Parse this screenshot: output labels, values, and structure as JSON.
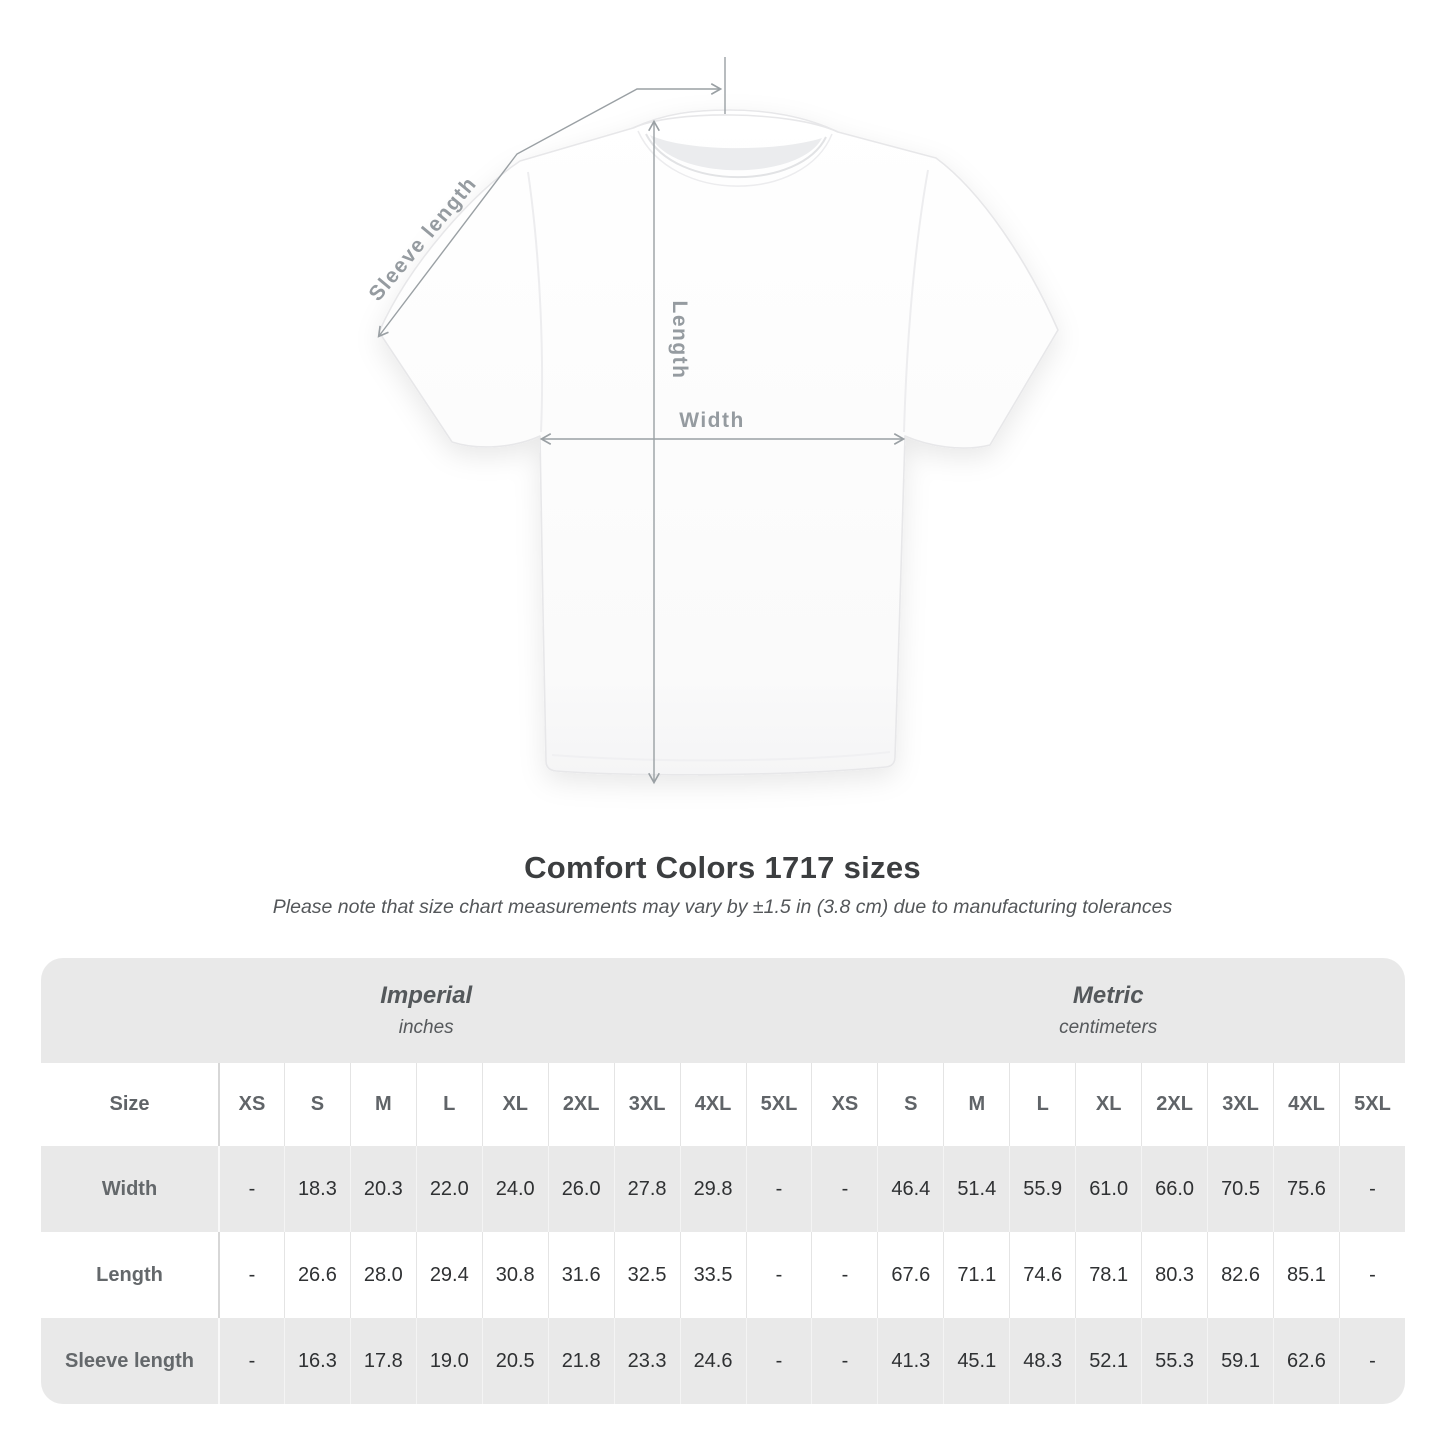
{
  "diagram": {
    "sleeve_label": "Sleeve length",
    "length_label": "Length",
    "width_label": "Width"
  },
  "header": {
    "title": "Comfort Colors 1717 sizes",
    "subtitle": "Please note that size chart measurements may vary by ±1.5 in (3.8 cm) due to manufacturing tolerances"
  },
  "chart_data": {
    "type": "table",
    "title": "Comfort Colors 1717 sizes",
    "corner_header": "Size",
    "unit_groups": [
      {
        "label": "Imperial",
        "unit": "inches"
      },
      {
        "label": "Metric",
        "unit": "centimeters"
      }
    ],
    "sizes": [
      "XS",
      "S",
      "M",
      "L",
      "XL",
      "2XL",
      "3XL",
      "4XL",
      "5XL"
    ],
    "rows": [
      {
        "label": "Width",
        "imperial": [
          "-",
          "18.3",
          "20.3",
          "22.0",
          "24.0",
          "26.0",
          "27.8",
          "29.8",
          "-"
        ],
        "metric": [
          "-",
          "46.4",
          "51.4",
          "55.9",
          "61.0",
          "66.0",
          "70.5",
          "75.6",
          "-"
        ]
      },
      {
        "label": "Length",
        "imperial": [
          "-",
          "26.6",
          "28.0",
          "29.4",
          "30.8",
          "31.6",
          "32.5",
          "33.5",
          "-"
        ],
        "metric": [
          "-",
          "67.6",
          "71.1",
          "74.6",
          "78.1",
          "80.3",
          "82.6",
          "85.1",
          "-"
        ]
      },
      {
        "label": "Sleeve length",
        "imperial": [
          "-",
          "16.3",
          "17.8",
          "19.0",
          "20.5",
          "21.8",
          "23.3",
          "24.6",
          "-"
        ],
        "metric": [
          "-",
          "41.3",
          "45.1",
          "48.3",
          "52.1",
          "55.3",
          "59.1",
          "62.6",
          "-"
        ]
      }
    ]
  },
  "colors": {
    "band_gray": "#e9e9e9",
    "measure_line": "#9aa0a4",
    "measure_label": "#959ba0",
    "title_text": "#3c3e40"
  }
}
